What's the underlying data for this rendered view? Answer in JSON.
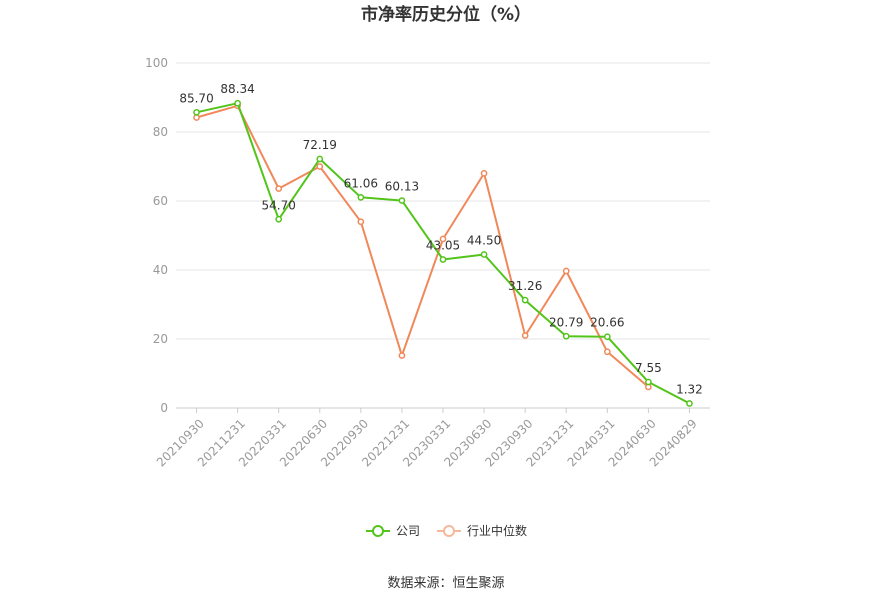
{
  "chart_data": {
    "type": "line",
    "title": "市净率历史分位（%）",
    "categories": [
      "20210930",
      "20211231",
      "20220331",
      "20220630",
      "20220930",
      "20221231",
      "20230331",
      "20230630",
      "20230930",
      "20231231",
      "20240331",
      "20240630",
      "20240829"
    ],
    "ylim": [
      0,
      100
    ],
    "yticks": [
      "0",
      "20",
      "40",
      "60",
      "80",
      "100"
    ],
    "grid": true,
    "legend_position": "bottom",
    "series": [
      {
        "name": "公司",
        "color": "#52c41a",
        "values": [
          85.7,
          88.34,
          54.7,
          72.19,
          61.06,
          60.13,
          43.05,
          44.5,
          31.26,
          20.79,
          20.66,
          7.55,
          1.32
        ],
        "labels": [
          "85.70",
          "88.34",
          "54.70",
          "72.19",
          "61.06",
          "60.13",
          "43.05",
          "44.50",
          "31.26",
          "20.79",
          "20.66",
          "7.55",
          "1.32"
        ]
      },
      {
        "name": "行业中位数",
        "color": "#f0885a",
        "values": [
          84.2,
          87.6,
          63.6,
          70.0,
          54.0,
          15.2,
          49.0,
          68.0,
          21.0,
          39.7,
          16.3,
          6.1,
          null
        ]
      }
    ]
  },
  "source_text": "数据来源：恒生聚源"
}
